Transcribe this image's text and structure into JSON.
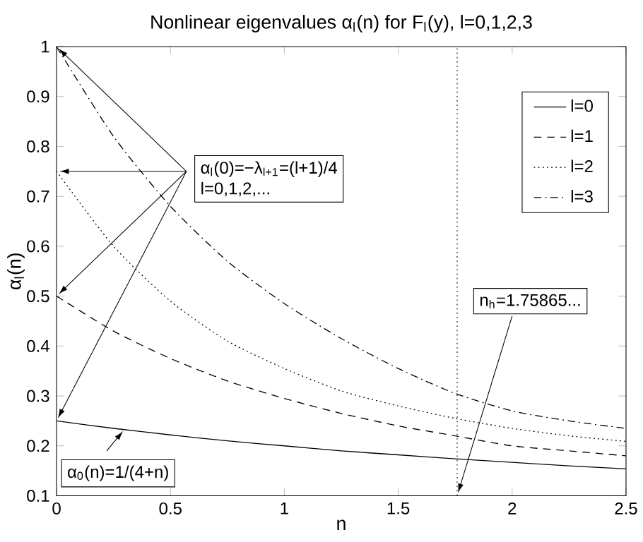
{
  "chart_data": {
    "type": "line",
    "title": "Nonlinear eigenvalues α$_{l}$(n) for F$_{l}$(y), l=0,1,2,3",
    "xlabel": "n",
    "ylabel": "α$_{l}$(n)",
    "x": [
      0,
      0.25,
      0.5,
      0.75,
      1,
      1.25,
      1.5,
      1.75,
      2,
      2.25,
      2.5
    ],
    "series": [
      {
        "name": "l=0",
        "color": "#000000",
        "line_style": "solid",
        "values": [
          0.25,
          0.235,
          0.222,
          0.21,
          0.2,
          0.19,
          0.182,
          0.174,
          0.167,
          0.16,
          0.154
        ]
      },
      {
        "name": "l=1",
        "color": "#000000",
        "line_style": "dashed",
        "values": [
          0.5,
          0.43,
          0.375,
          0.33,
          0.295,
          0.265,
          0.24,
          0.22,
          0.2,
          0.19,
          0.18
        ]
      },
      {
        "name": "l=2",
        "color": "#000000",
        "line_style": "dotted",
        "values": [
          0.75,
          0.6,
          0.49,
          0.41,
          0.355,
          0.31,
          0.28,
          0.255,
          0.235,
          0.22,
          0.209
        ]
      },
      {
        "name": "l=3",
        "color": "#000000",
        "line_style": "dashdot",
        "values": [
          1,
          0.82,
          0.68,
          0.57,
          0.485,
          0.415,
          0.355,
          0.305,
          0.27,
          0.25,
          0.235
        ]
      }
    ],
    "xlim": [
      0,
      2.5
    ],
    "ylim": [
      0.1,
      1
    ],
    "xticks": [
      0,
      0.5,
      1,
      1.5,
      2,
      2.5
    ],
    "yticks": [
      0.1,
      0.2,
      0.3,
      0.4,
      0.5,
      0.6,
      0.7,
      0.8,
      0.9,
      1
    ],
    "grid": false,
    "legend": "top right",
    "marker": "none",
    "ref_lines": [
      {
        "axis": "x",
        "value": 1.75865,
        "line_style": "dotted",
        "color": "#000000"
      }
    ],
    "annotations": [
      {
        "text": "α$_{l}$(0)=−λ$_{l+1}$=(l+1)/4",
        "x": 0,
        "y": 0.75
      },
      {
        "text": "l=0,1,2,...",
        "x": 0,
        "y": 0.75
      },
      {
        "text": "α$_{0}$(n)=1/(4+n)",
        "x": 0.3,
        "y": 0.234
      },
      {
        "text": "n$_{h}$=1.75865...",
        "x": 1.75865,
        "y": 0.1
      }
    ]
  }
}
